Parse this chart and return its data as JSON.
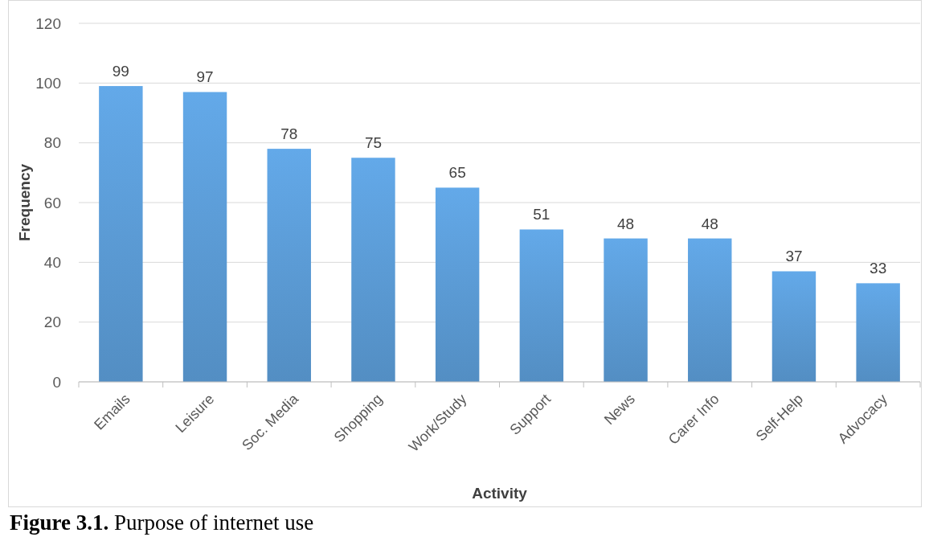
{
  "chart_data": {
    "type": "bar",
    "xlabel": "Activity",
    "ylabel": "Frequency",
    "categories": [
      "Emails",
      "Leisure",
      "Soc. Media",
      "Shopping",
      "Work/Study",
      "Support",
      "News",
      "Carer Info",
      "Self-Help",
      "Advocacy"
    ],
    "values": [
      99,
      97,
      78,
      75,
      65,
      51,
      48,
      48,
      37,
      33
    ],
    "color": "#5b9bd5",
    "ylim": [
      0,
      120
    ],
    "yticks": [
      0,
      20,
      40,
      60,
      80,
      100,
      120
    ],
    "grid": "y",
    "data_labels": true,
    "annotations": [
      "Figure 3.1.",
      "Purpose of internet use"
    ]
  }
}
